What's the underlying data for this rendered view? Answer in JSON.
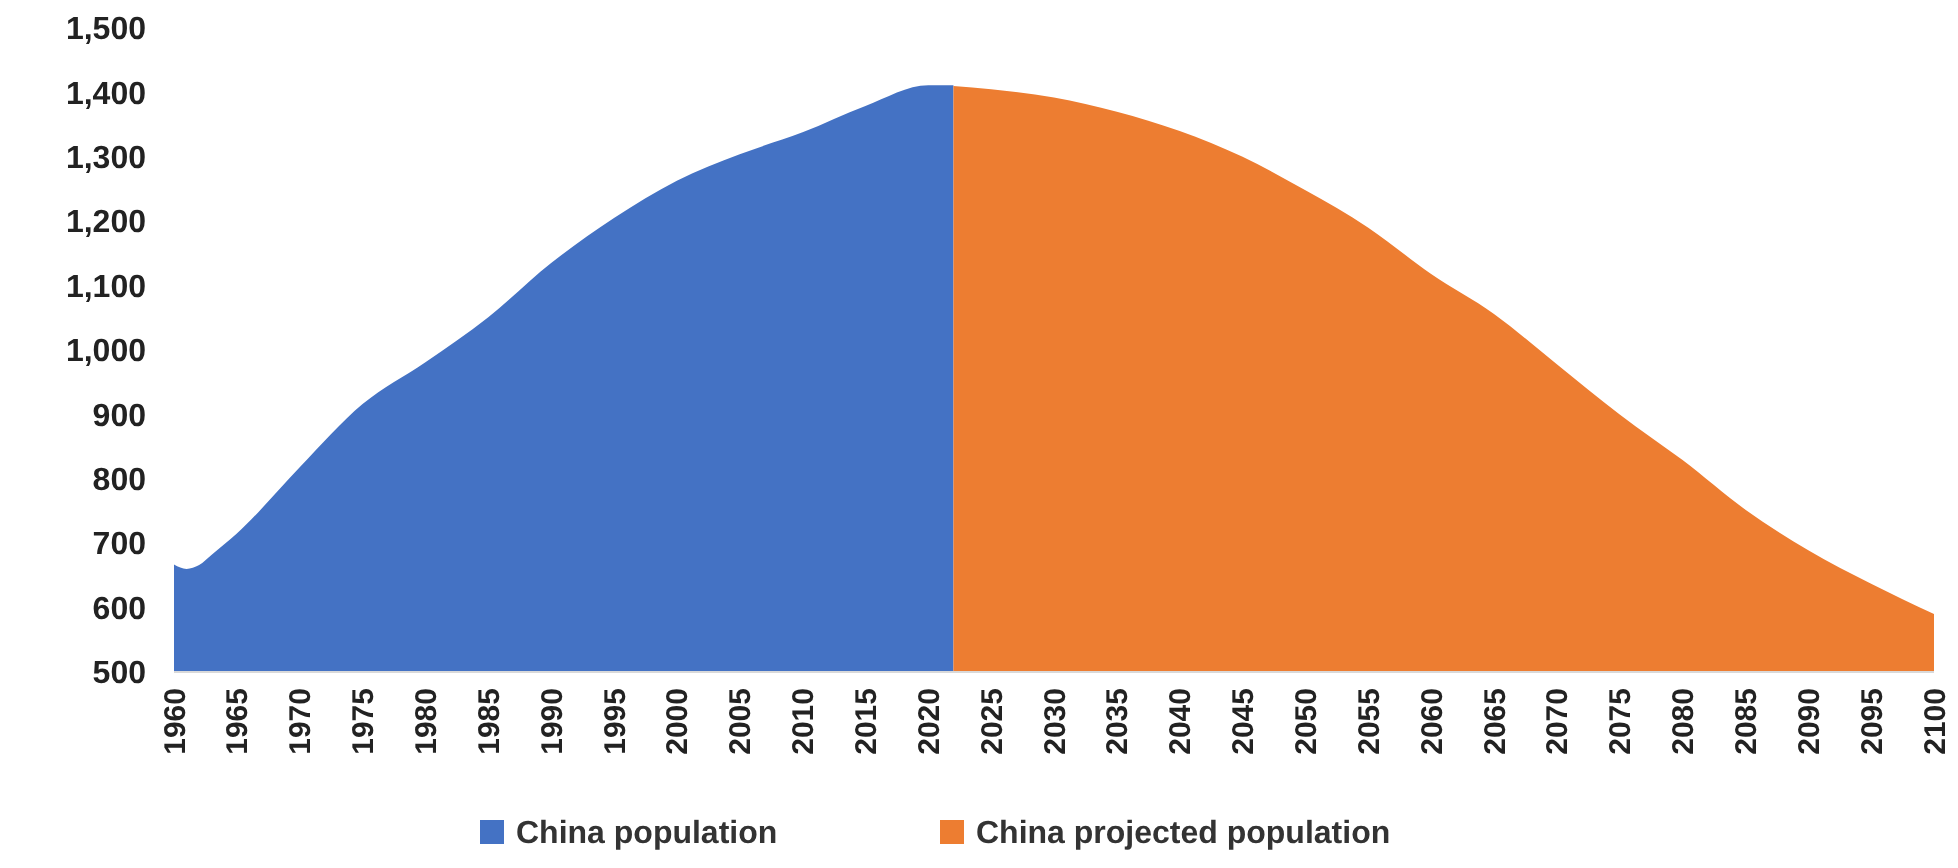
{
  "chart_data": {
    "type": "area",
    "xlim": [
      1960,
      2100
    ],
    "xticks": [
      1960,
      1965,
      1970,
      1975,
      1980,
      1985,
      1990,
      1995,
      2000,
      2005,
      2010,
      2015,
      2020,
      2025,
      2030,
      2035,
      2040,
      2045,
      2050,
      2055,
      2060,
      2065,
      2070,
      2075,
      2080,
      2085,
      2090,
      2095,
      2100
    ],
    "ylim": [
      500,
      1500
    ],
    "yticks": [
      {
        "value": 500,
        "label": "500"
      },
      {
        "value": 600,
        "label": "600"
      },
      {
        "value": 700,
        "label": "700"
      },
      {
        "value": 800,
        "label": "800"
      },
      {
        "value": 900,
        "label": "900"
      },
      {
        "value": 1000,
        "label": "1,000"
      },
      {
        "value": 1100,
        "label": "1,100"
      },
      {
        "value": 1200,
        "label": "1,200"
      },
      {
        "value": 1300,
        "label": "1,300"
      },
      {
        "value": 1400,
        "label": "1,400"
      },
      {
        "value": 1500,
        "label": "1,500"
      }
    ],
    "grid": false,
    "legend": "bottom",
    "series": [
      {
        "name": "China population",
        "color": "#4472c4",
        "x": [
          1960,
          1961,
          1962,
          1963,
          1965,
          1970,
          1975,
          1980,
          1985,
          1990,
          1995,
          2000,
          2005,
          2010,
          2015,
          2020,
          2022
        ],
        "values": [
          667,
          660,
          666,
          682,
          715,
          818,
          916,
          981,
          1051,
          1135,
          1205,
          1263,
          1304,
          1338,
          1379,
          1411,
          1411
        ]
      },
      {
        "name": "China projected population",
        "color": "#ed7d31",
        "x": [
          2022,
          2025,
          2030,
          2035,
          2040,
          2045,
          2050,
          2055,
          2060,
          2065,
          2070,
          2075,
          2080,
          2085,
          2090,
          2095,
          2100
        ],
        "values": [
          1410,
          1405,
          1392,
          1370,
          1340,
          1300,
          1248,
          1190,
          1118,
          1056,
          978,
          900,
          829,
          752,
          689,
          637,
          590
        ]
      }
    ]
  }
}
